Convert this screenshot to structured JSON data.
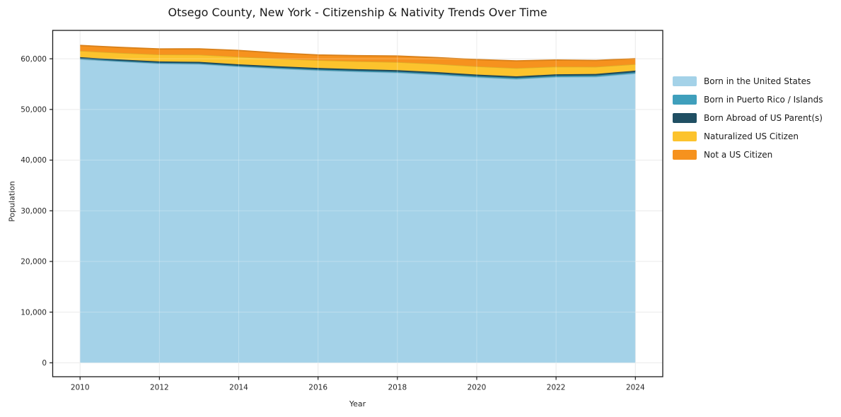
{
  "chart_data": {
    "type": "area",
    "stacked": true,
    "title": "Otsego County, New York - Citizenship & Nativity Trends Over Time",
    "xlabel": "Year",
    "ylabel": "Population",
    "x": [
      2010,
      2011,
      2012,
      2013,
      2014,
      2015,
      2016,
      2017,
      2018,
      2019,
      2020,
      2021,
      2022,
      2023,
      2024
    ],
    "series": [
      {
        "name": "Born in the United States",
        "color": "#a4d2e8",
        "values": [
          59900,
          59450,
          59050,
          58950,
          58450,
          58050,
          57700,
          57450,
          57250,
          56850,
          56350,
          56000,
          56400,
          56450,
          57100
        ]
      },
      {
        "name": "Born in Puerto Rico / Islands",
        "color": "#3f9fbc",
        "values": [
          150,
          155,
          160,
          170,
          180,
          190,
          200,
          200,
          210,
          220,
          230,
          230,
          240,
          250,
          250
        ]
      },
      {
        "name": "Born Abroad of US Parent(s)",
        "color": "#204f63",
        "values": [
          260,
          260,
          265,
          270,
          280,
          285,
          290,
          295,
          300,
          300,
          300,
          300,
          300,
          300,
          310
        ]
      },
      {
        "name": "Naturalized US Citizen",
        "color": "#fcc32d",
        "values": [
          1260,
          1300,
          1360,
          1420,
          1480,
          1500,
          1530,
          1560,
          1580,
          1600,
          1620,
          1630,
          1520,
          1420,
          1280
        ]
      },
      {
        "name": "Not a US Citizen",
        "color": "#f6921e",
        "values": [
          1060,
          1080,
          1100,
          1150,
          1250,
          1100,
          1030,
          1100,
          1200,
          1250,
          1350,
          1420,
          1300,
          1250,
          1080
        ]
      }
    ],
    "xticks": [
      2010,
      2012,
      2014,
      2016,
      2018,
      2020,
      2022,
      2024
    ],
    "xtick_labels": [
      "2010",
      "2012",
      "2014",
      "2016",
      "2018",
      "2020",
      "2022",
      "2024"
    ],
    "yticks": [
      0,
      10000,
      20000,
      30000,
      40000,
      50000,
      60000
    ],
    "ytick_labels": [
      "0",
      "10,000",
      "20,000",
      "30,000",
      "40,000",
      "50,000",
      "60,000"
    ],
    "xlim": [
      2009.31,
      2024.69
    ],
    "ylim": [
      -2750,
      65600
    ],
    "grid": true,
    "legend_position": "outside-center-right",
    "frame_color": "#1a1a1a",
    "grid_color": "#e4e4e4",
    "background_color": "#ffffff"
  }
}
